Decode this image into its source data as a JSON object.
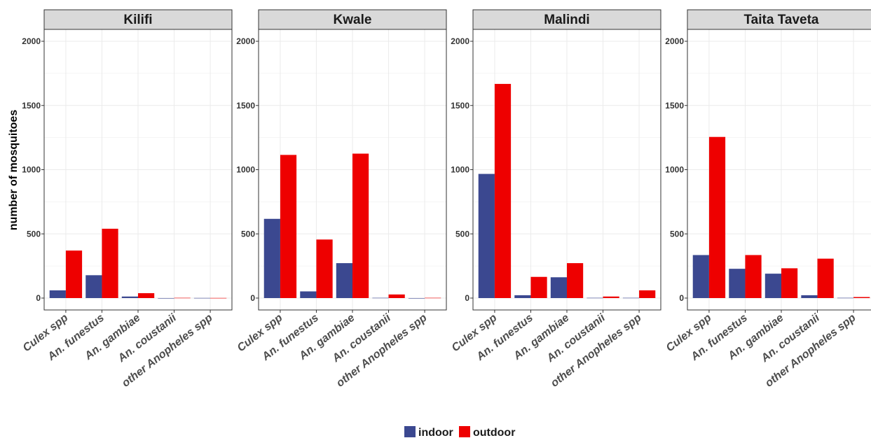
{
  "chart_data": {
    "type": "bar",
    "ylabel": "number of mosquitoes",
    "xlabel": "",
    "ylim": [
      0,
      2000
    ],
    "yticks": [
      0,
      500,
      1000,
      1500,
      2000
    ],
    "grid": true,
    "legend_position": "bottom",
    "categories": [
      "Culex spp",
      "An. funestus",
      "An. gambiae",
      "An. coustanii",
      "other Anopheles spp"
    ],
    "series": [
      {
        "name": "indoor",
        "color": "#3b4890"
      },
      {
        "name": "outdoor",
        "color": "#ee0000"
      }
    ],
    "panels": [
      {
        "title": "Kilifi",
        "indoor": [
          60,
          178,
          12,
          0,
          1
        ],
        "outdoor": [
          370,
          540,
          38,
          2,
          1
        ]
      },
      {
        "title": "Kwale",
        "indoor": [
          617,
          52,
          272,
          2,
          0
        ],
        "outdoor": [
          1115,
          456,
          1125,
          28,
          2
        ]
      },
      {
        "title": "Malindi",
        "indoor": [
          967,
          22,
          162,
          2,
          2
        ],
        "outdoor": [
          1668,
          165,
          272,
          12,
          60
        ]
      },
      {
        "title": "Taita Taveta",
        "indoor": [
          335,
          228,
          190,
          22,
          2
        ],
        "outdoor": [
          1255,
          335,
          232,
          307,
          8
        ]
      }
    ]
  }
}
